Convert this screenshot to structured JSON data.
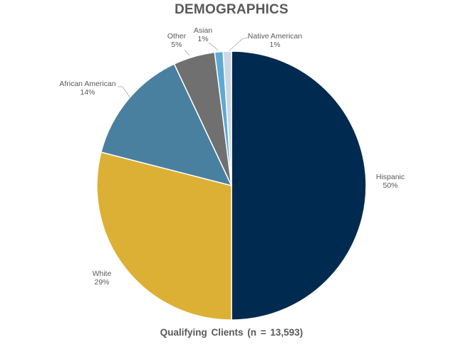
{
  "chart_data": {
    "type": "pie",
    "title": "DEMOGRAPHICS",
    "subtitle": "Qualifying  Clients  (n = 13,593)",
    "slices": [
      {
        "label": "Hispanic",
        "value": 50,
        "display": "50%",
        "color": "#002a4f"
      },
      {
        "label": "White",
        "value": 29,
        "display": "29%",
        "color": "#dcb034"
      },
      {
        "label": "African American",
        "value": 14,
        "display": "14%",
        "color": "#4a809f"
      },
      {
        "label": "Other",
        "value": 5,
        "display": "5%",
        "color": "#707070"
      },
      {
        "label": "Asian",
        "value": 1,
        "display": "1%",
        "color": "#5daad3"
      },
      {
        "label": "Native American",
        "value": 1,
        "display": "1%",
        "color": "#ccd8e6"
      }
    ]
  }
}
